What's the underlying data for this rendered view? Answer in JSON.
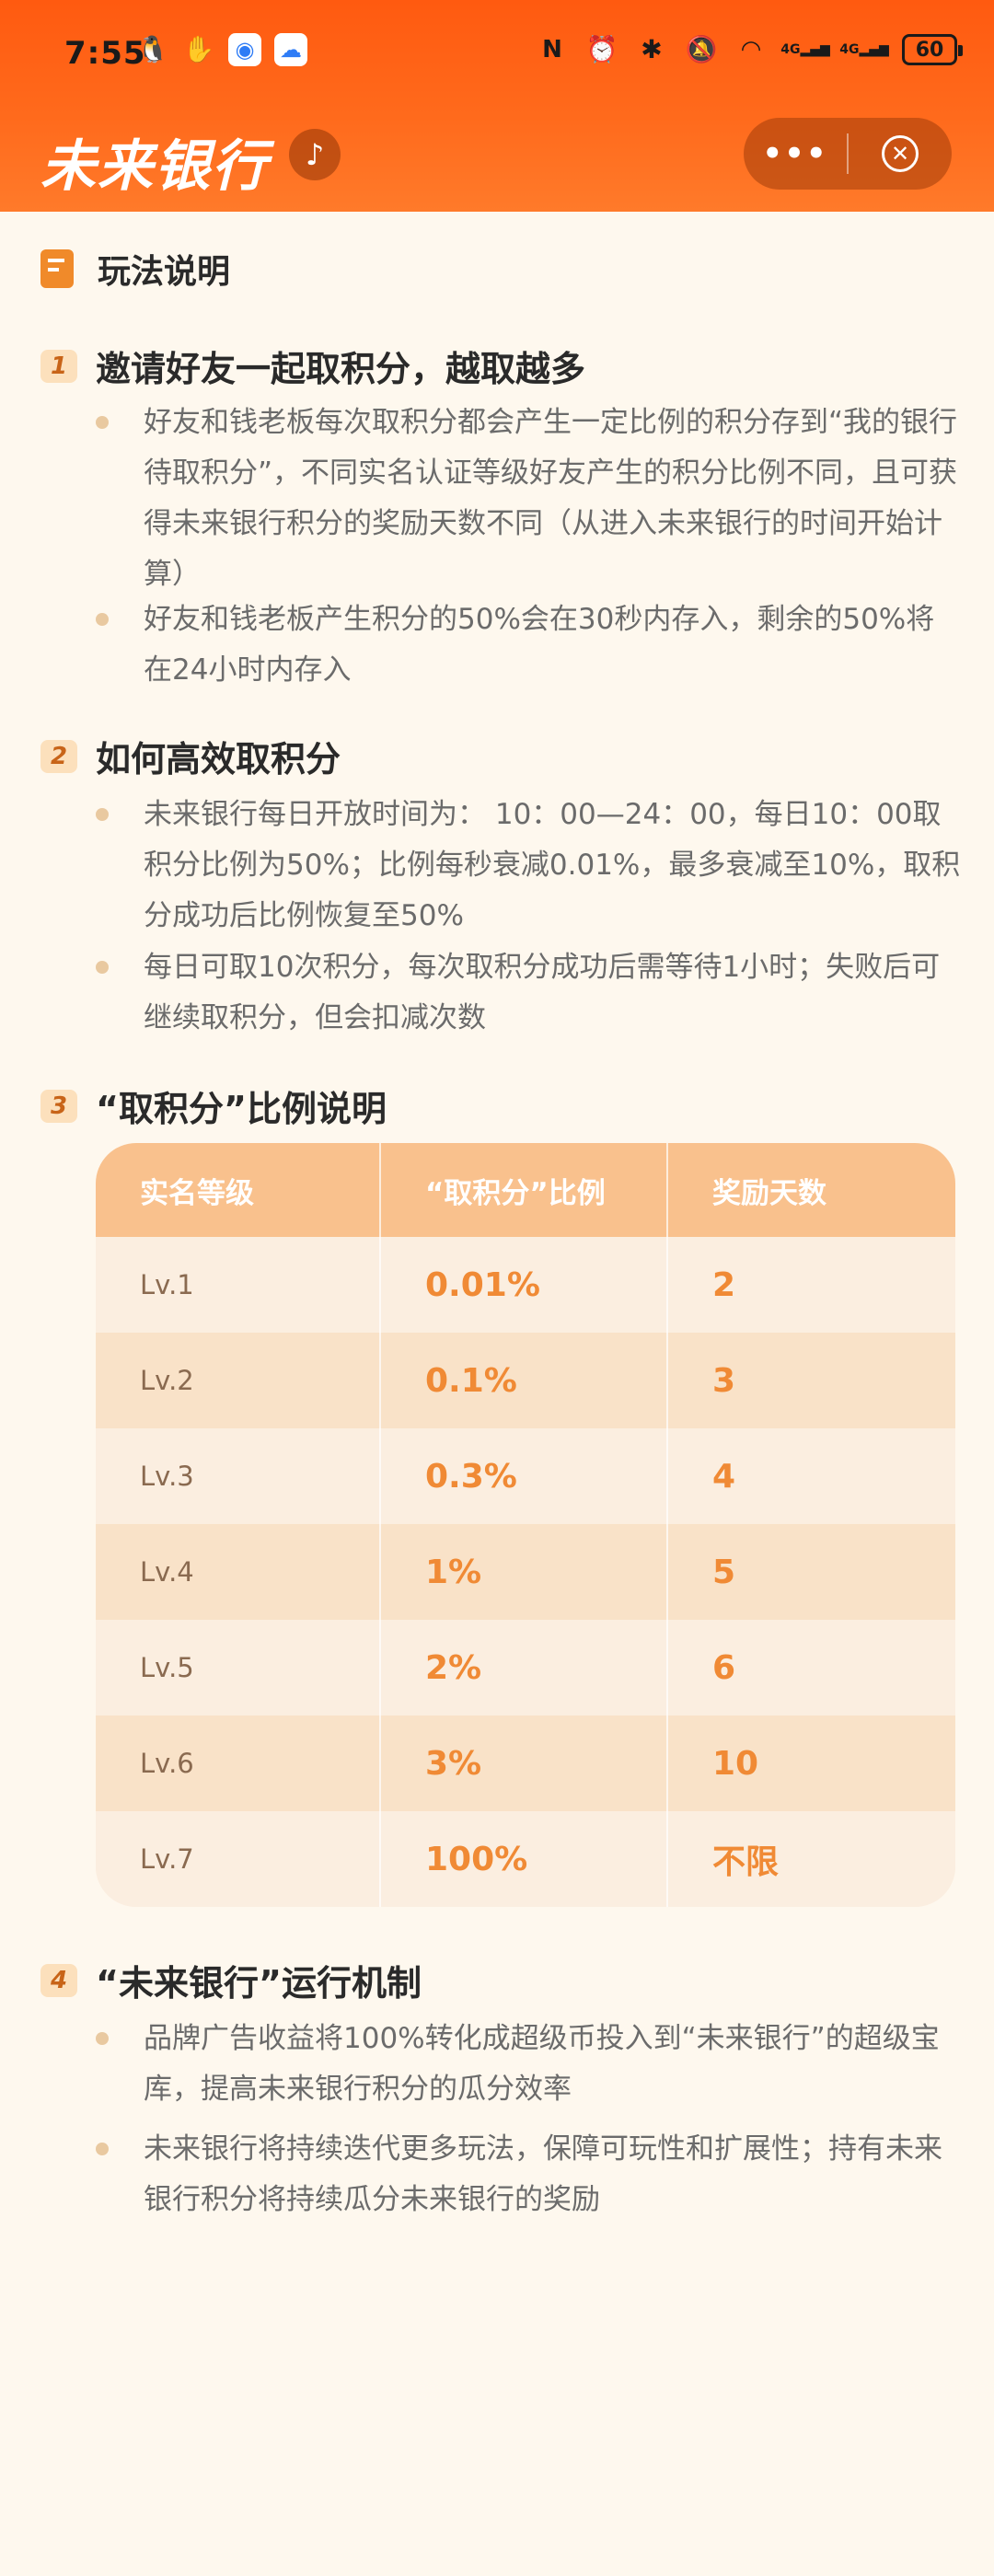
{
  "status_bar": {
    "time": "7:55",
    "left_icons": [
      "qq-icon",
      "hand-icon",
      "app-icon-blue",
      "weather-icon"
    ],
    "right_icons": [
      "nfc-icon",
      "alarm-icon",
      "bluetooth-icon",
      "mute-icon",
      "wifi-icon",
      "signal-4g-icon",
      "signal-4g-icon-2"
    ],
    "network_label_1": "4G",
    "network_label_2": "4G",
    "battery": "60"
  },
  "header": {
    "brand": "未来银行",
    "more_label": "•••",
    "close_label": "✕"
  },
  "page": {
    "title": "玩法说明"
  },
  "sections": [
    {
      "num": "1",
      "title": "邀请好友一起取积分，越取越多",
      "bullets": [
        "好友和钱老板每次取积分都会产生一定比例的积分存到“我的银行待取积分”，不同实名认证等级好友产生的积分比例不同，且可获得未来银行积分的奖励天数不同（从进入未来银行的时间开始计算）",
        "好友和钱老板产生积分的50%会在30秒内存入，剩余的50%将在24小时内存入"
      ]
    },
    {
      "num": "2",
      "title": "如何高效取积分",
      "bullets": [
        "未来银行每日开放时间为： 10：00—24：00，每日10：00取积分比例为50%；比例每秒衰减0.01%，最多衰减至10%，取积分成功后比例恢复至50%",
        "每日可取10次积分，每次取积分成功后需等待1小时；失败后可继续取积分，但会扣减次数"
      ]
    },
    {
      "num": "3",
      "title": "“取积分”比例说明"
    },
    {
      "num": "4",
      "title": "“未来银行”运行机制",
      "bullets": [
        "品牌广告收益将100%转化成超级币投入到“未来银行”的超级宝库，提高未来银行积分的瓜分效率",
        "未来银行将持续迭代更多玩法，保障可玩性和扩展性；持有未来银行积分将持续瓜分未来银行的奖励"
      ]
    }
  ],
  "table": {
    "headers": [
      "实名等级",
      "“取积分”比例",
      "奖励天数"
    ],
    "rows": [
      [
        "Lv.1",
        "0.01%",
        "2"
      ],
      [
        "Lv.2",
        "0.1%",
        "3"
      ],
      [
        "Lv.3",
        "0.3%",
        "4"
      ],
      [
        "Lv.4",
        "1%",
        "5"
      ],
      [
        "Lv.5",
        "2%",
        "6"
      ],
      [
        "Lv.6",
        "3%",
        "10"
      ],
      [
        "Lv.7",
        "100%",
        "不限"
      ]
    ]
  },
  "colors": {
    "header_orange": "#FF5A10",
    "background": "#FEF8EE",
    "accent_value": "#F08A35",
    "table_head": "#F9C18D"
  }
}
